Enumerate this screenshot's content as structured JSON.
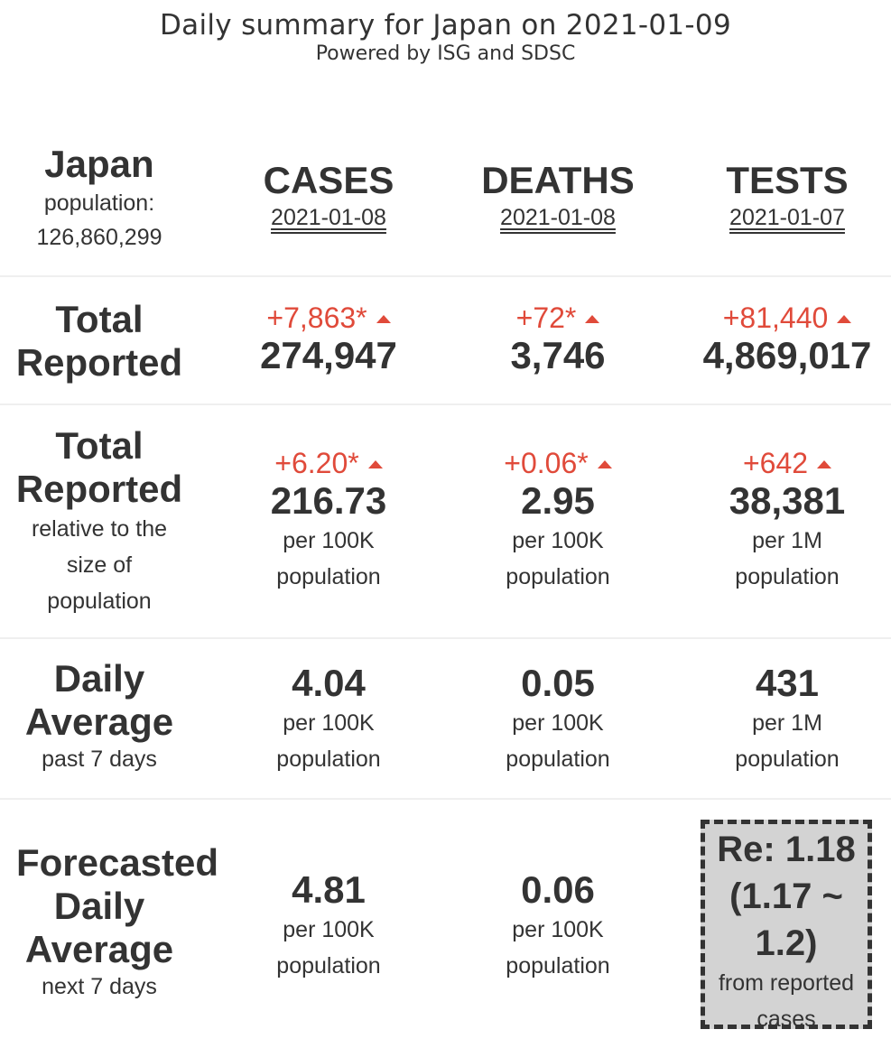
{
  "header": {
    "title": "Daily summary for Japan on 2021-01-09",
    "subtitle": "Powered by ISG and SDSC"
  },
  "country": {
    "name": "Japan",
    "population_label": "population:",
    "population": "126,860,299"
  },
  "columns": {
    "cases": {
      "label": "CASES",
      "date": "2021-01-08"
    },
    "deaths": {
      "label": "DEATHS",
      "date": "2021-01-08"
    },
    "tests": {
      "label": "TESTS",
      "date": "2021-01-07"
    }
  },
  "total_reported": {
    "label_line1": "Total",
    "label_line2": "Reported",
    "cases": {
      "delta": "+7,863*",
      "value": "274,947"
    },
    "deaths": {
      "delta": "+72*",
      "value": "3,746"
    },
    "tests": {
      "delta": "+81,440",
      "value": "4,869,017"
    }
  },
  "relative": {
    "label_line1": "Total",
    "label_line2": "Reported",
    "label_sub1": "relative to the",
    "label_sub2": "size of",
    "label_sub3": "population",
    "cases": {
      "delta": "+6.20*",
      "value": "216.73",
      "unit1": "per 100K",
      "unit2": "population"
    },
    "deaths": {
      "delta": "+0.06*",
      "value": "2.95",
      "unit1": "per 100K",
      "unit2": "population"
    },
    "tests": {
      "delta": "+642",
      "value": "38,381",
      "unit1": "per 1M",
      "unit2": "population"
    }
  },
  "daily_average": {
    "label_line1": "Daily",
    "label_line2": "Average",
    "label_sub": "past 7 days",
    "cases": {
      "value": "4.04",
      "unit1": "per 100K",
      "unit2": "population"
    },
    "deaths": {
      "value": "0.05",
      "unit1": "per 100K",
      "unit2": "population"
    },
    "tests": {
      "value": "431",
      "unit1": "per 1M",
      "unit2": "population"
    }
  },
  "forecast": {
    "label_line1": "Forecasted",
    "label_line2": "Daily",
    "label_line3": "Average",
    "label_sub": "next 7 days",
    "cases": {
      "value": "4.81",
      "unit1": "per 100K",
      "unit2": "population"
    },
    "deaths": {
      "value": "0.06",
      "unit1": "per 100K",
      "unit2": "population"
    },
    "re": {
      "line1": "Re: 1.18",
      "line2": "(1.17 ~",
      "line3": "1.2)",
      "sub1": "from reported",
      "sub2": "cases"
    }
  },
  "colors": {
    "increase": "#e04a3a",
    "text": "#333333",
    "re_box_bg": "#d3d3d3"
  }
}
